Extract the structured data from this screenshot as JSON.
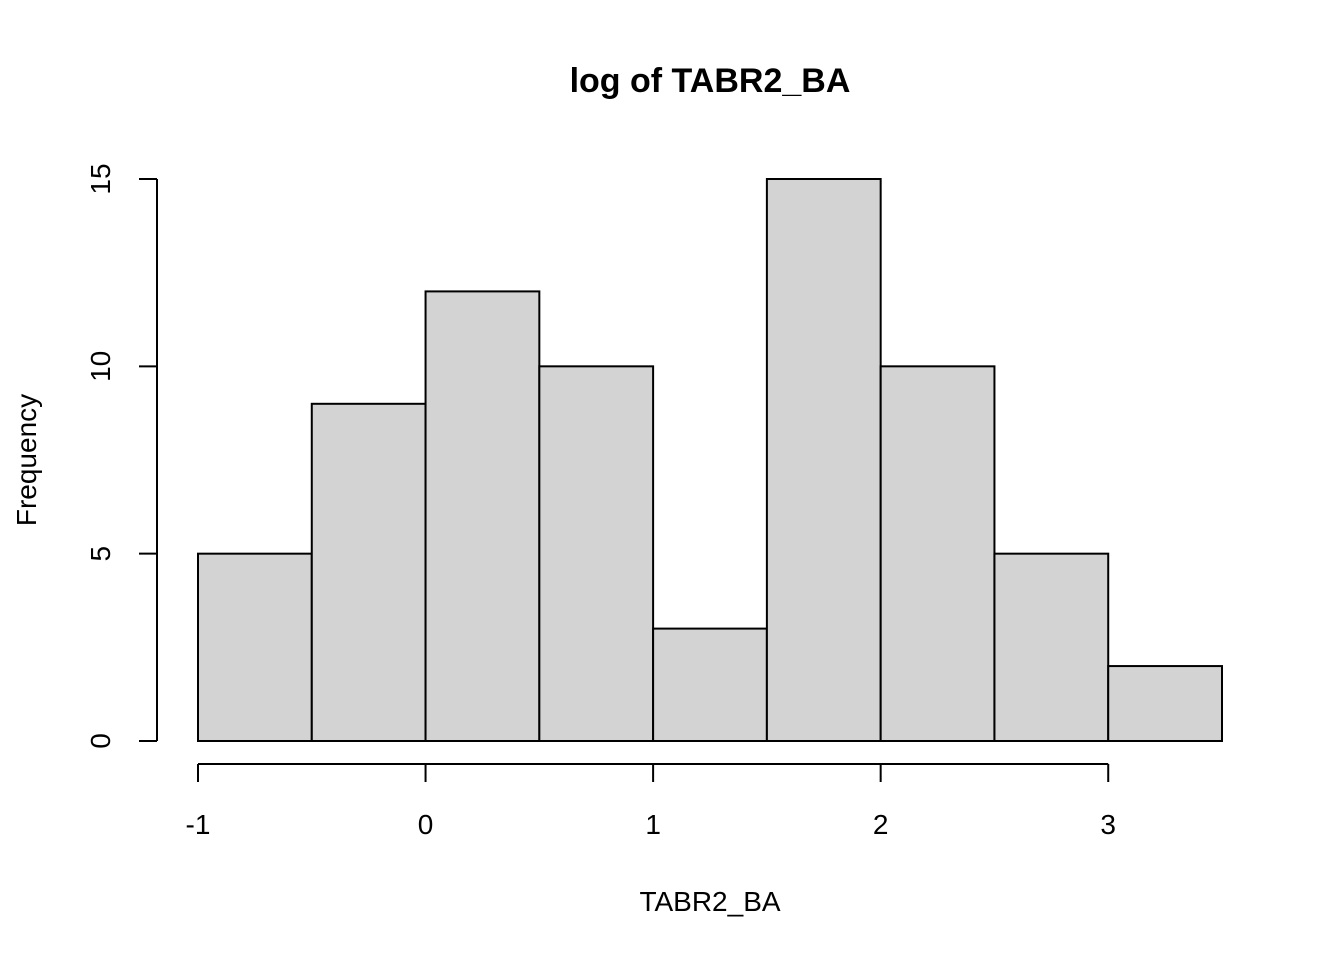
{
  "chart_data": {
    "type": "bar",
    "title": "log of TABR2_BA",
    "xlabel": "TABR2_BA",
    "ylabel": "Frequency",
    "bin_edges": [
      -1,
      -0.5,
      0,
      0.5,
      1,
      1.5,
      2,
      2.5,
      3,
      3.5
    ],
    "values": [
      5,
      9,
      12,
      10,
      3,
      15,
      10,
      5,
      2
    ],
    "xlim": [
      -1,
      3.5
    ],
    "ylim": [
      0,
      15
    ],
    "x_ticks": [
      "-1",
      "0",
      "1",
      "2",
      "3"
    ],
    "y_ticks": [
      "0",
      "5",
      "10",
      "15"
    ],
    "grid": false,
    "bar_color": "#d3d3d3"
  }
}
